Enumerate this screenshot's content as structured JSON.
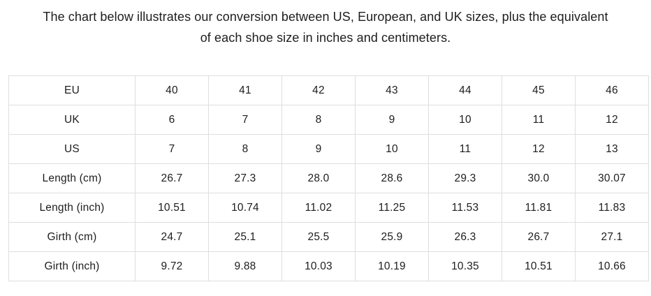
{
  "title": {
    "line1": "The chart below illustrates our conversion between US, European, and UK sizes, plus the equivalent",
    "line2": "of each shoe size in inches and centimeters."
  },
  "chart_data": {
    "type": "table",
    "description": "Shoe size conversion chart",
    "row_labels": [
      "EU",
      "UK",
      "US",
      "Length (cm)",
      "Length (inch)",
      "Girth (cm)",
      "Girth (inch)"
    ],
    "rows": [
      {
        "label": "EU",
        "values": [
          "40",
          "41",
          "42",
          "43",
          "44",
          "45",
          "46"
        ]
      },
      {
        "label": "UK",
        "values": [
          "6",
          "7",
          "8",
          "9",
          "10",
          "11",
          "12"
        ]
      },
      {
        "label": "US",
        "values": [
          "7",
          "8",
          "9",
          "10",
          "11",
          "12",
          "13"
        ]
      },
      {
        "label": "Length (cm)",
        "values": [
          "26.7",
          "27.3",
          "28.0",
          "28.6",
          "29.3",
          "30.0",
          "30.07"
        ]
      },
      {
        "label": "Length (inch)",
        "values": [
          "10.51",
          "10.74",
          "11.02",
          "11.25",
          "11.53",
          "11.81",
          "11.83"
        ]
      },
      {
        "label": "Girth (cm)",
        "values": [
          "24.7",
          "25.1",
          "25.5",
          "25.9",
          "26.3",
          "26.7",
          "27.1"
        ]
      },
      {
        "label": "Girth (inch)",
        "values": [
          "9.72",
          "9.88",
          "10.03",
          "10.19",
          "10.35",
          "10.51",
          "10.66"
        ]
      }
    ]
  },
  "colors": {
    "text": "#1d1d1d",
    "border": "#dedede",
    "background": "#ffffff"
  }
}
